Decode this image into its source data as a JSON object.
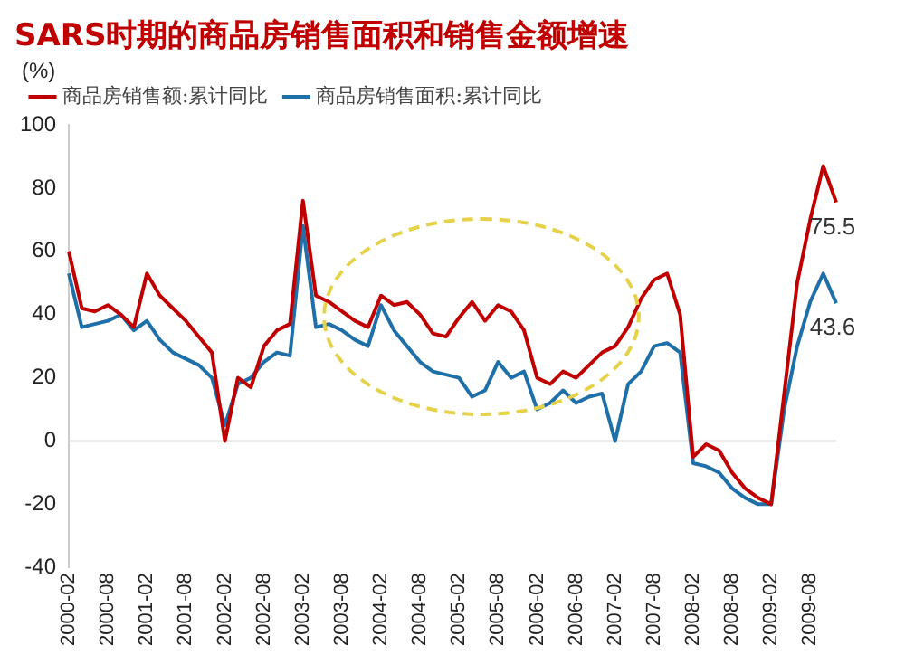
{
  "chart_data": {
    "type": "line",
    "title": "SARS时期的商品房销售面积和销售金额增速",
    "ylabel": "(%)",
    "categories": [
      "2000-02",
      null,
      null,
      "2000-08",
      null,
      null,
      "2001-02",
      null,
      null,
      "2001-08",
      null,
      null,
      "2002-02",
      null,
      null,
      "2002-08",
      null,
      null,
      "2003-02",
      null,
      null,
      "2003-08",
      null,
      null,
      "2004-02",
      null,
      null,
      "2004-08",
      null,
      null,
      "2005-02",
      null,
      null,
      "2005-08",
      null,
      null,
      "2006-02",
      null,
      null,
      "2006-08",
      null,
      null,
      "2007-02",
      null,
      null,
      "2007-08",
      null,
      null,
      "2008-02",
      null,
      null,
      "2008-08",
      null,
      null,
      "2009-02",
      null,
      null,
      "2009-08",
      null,
      null
    ],
    "series": [
      {
        "name": "商品房销售额:累计同比",
        "color": "#c00000",
        "values": [
          60,
          42,
          41,
          43,
          40,
          36,
          53,
          46,
          42,
          38,
          33,
          28,
          0,
          20,
          17,
          30,
          35,
          37,
          76,
          46,
          44,
          41,
          38,
          36,
          46,
          43,
          44,
          40,
          34,
          33,
          39,
          44,
          38,
          43,
          41,
          35,
          20,
          18,
          22,
          20,
          24,
          28,
          30,
          36,
          45,
          51,
          53,
          40,
          -5,
          -1,
          -3,
          -10,
          -15,
          -18,
          -20,
          15,
          50,
          70,
          87,
          75.5
        ],
        "value_labels": [
          null,
          null,
          null,
          null,
          null,
          null,
          null,
          null,
          null,
          null,
          null,
          null,
          null,
          null,
          null,
          null,
          null,
          null,
          null,
          null,
          null,
          null,
          null,
          null,
          null,
          null,
          null,
          null,
          null,
          null,
          null,
          null,
          null,
          null,
          null,
          null,
          null,
          null,
          null,
          null,
          null,
          null,
          null,
          null,
          null,
          null,
          null,
          null,
          null,
          null,
          null,
          null,
          null,
          null,
          null,
          null,
          null,
          null,
          null,
          "75.5"
        ]
      },
      {
        "name": "商品房销售面积:累计同比",
        "color": "#1f6fa8",
        "values": [
          53,
          36,
          37,
          38,
          40,
          35,
          38,
          32,
          28,
          26,
          24,
          20,
          5,
          18,
          20,
          25,
          28,
          27,
          68,
          36,
          37,
          35,
          32,
          30,
          43,
          35,
          30,
          25,
          22,
          21,
          20,
          14,
          16,
          25,
          20,
          22,
          10,
          12,
          16,
          12,
          14,
          15,
          0,
          18,
          22,
          30,
          31,
          28,
          -7,
          -8,
          -10,
          -15,
          -18,
          -20,
          -20,
          10,
          30,
          44,
          53,
          43.6
        ],
        "value_labels": [
          null,
          null,
          null,
          null,
          null,
          null,
          null,
          null,
          null,
          null,
          null,
          null,
          null,
          null,
          null,
          null,
          null,
          null,
          null,
          null,
          null,
          null,
          null,
          null,
          null,
          null,
          null,
          null,
          null,
          null,
          null,
          null,
          null,
          null,
          null,
          null,
          null,
          null,
          null,
          null,
          null,
          null,
          null,
          null,
          null,
          null,
          null,
          null,
          null,
          null,
          null,
          null,
          null,
          null,
          null,
          null,
          null,
          null,
          null,
          "43.6"
        ]
      }
    ],
    "ylim": [
      -40,
      100
    ],
    "yticks": [
      -40,
      -20,
      0,
      20,
      40,
      60,
      80,
      100
    ],
    "ref_lines": [
      {
        "axis": "y",
        "value": 0,
        "color": "#d9d9d9"
      }
    ],
    "grid": false,
    "legend": "top",
    "marker": "none",
    "line_style": "solid"
  }
}
